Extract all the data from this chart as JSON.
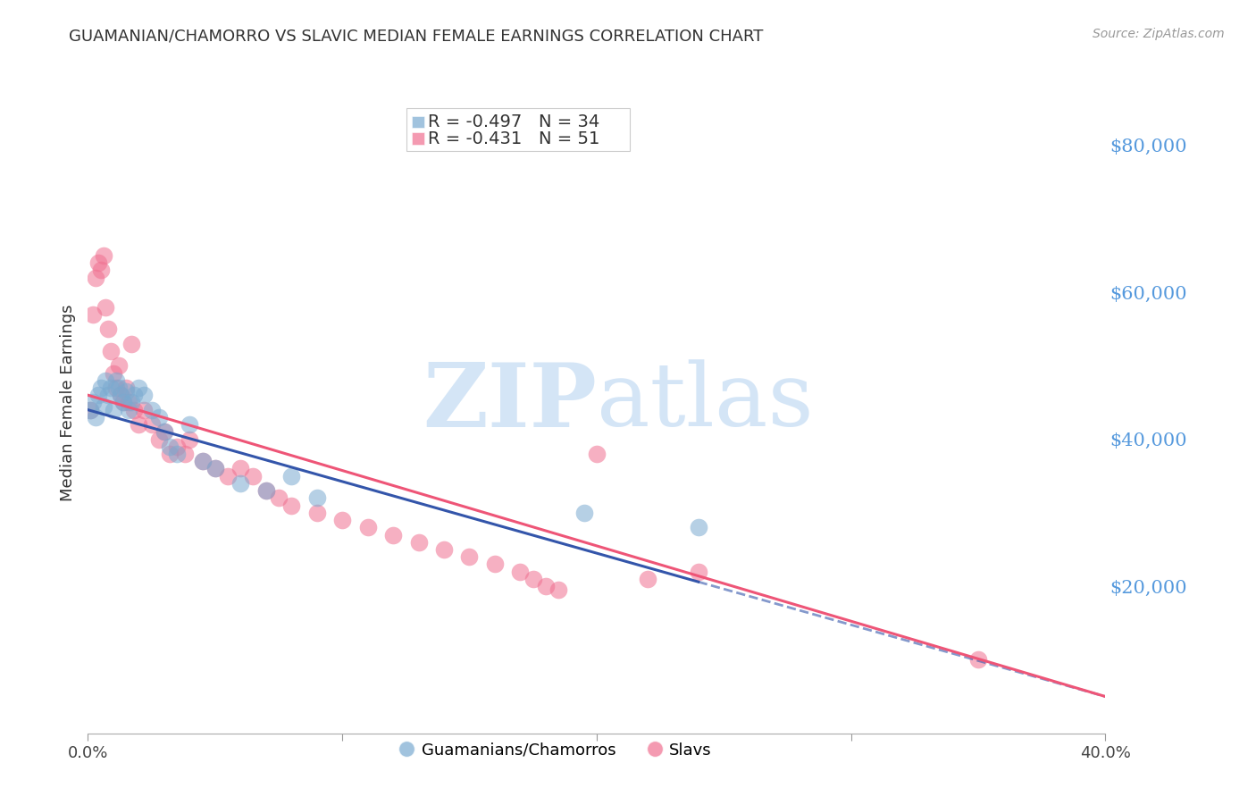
{
  "title": "GUAMANIAN/CHAMORRO VS SLAVIC MEDIAN FEMALE EARNINGS CORRELATION CHART",
  "source": "Source: ZipAtlas.com",
  "ylabel": "Median Female Earnings",
  "right_ytick_labels": [
    "$20,000",
    "$40,000",
    "$60,000",
    "$80,000"
  ],
  "right_ytick_values": [
    20000,
    40000,
    60000,
    80000
  ],
  "ylim": [
    0,
    90000
  ],
  "xlim": [
    0.0,
    0.4
  ],
  "legend_label_guam": "Guamanians/Chamorros",
  "legend_label_slav": "Slavs",
  "bg_color": "#FFFFFF",
  "watermark_zip": "ZIP",
  "watermark_atlas": "atlas",
  "watermark_color": "#AACCEE",
  "grid_color": "#CCCCCC",
  "blue_color": "#7AAAD0",
  "pink_color": "#F07090",
  "blue_line_color": "#3355AA",
  "pink_line_color": "#EE5577",
  "guam_x": [
    0.001,
    0.002,
    0.003,
    0.004,
    0.005,
    0.006,
    0.007,
    0.008,
    0.009,
    0.01,
    0.011,
    0.012,
    0.013,
    0.014,
    0.015,
    0.016,
    0.017,
    0.018,
    0.02,
    0.022,
    0.025,
    0.028,
    0.03,
    0.032,
    0.035,
    0.04,
    0.045,
    0.05,
    0.06,
    0.07,
    0.08,
    0.09,
    0.195,
    0.24
  ],
  "guam_y": [
    44000,
    45000,
    43000,
    46000,
    47000,
    44500,
    48000,
    46000,
    47000,
    44000,
    48000,
    47000,
    46000,
    45000,
    46500,
    44000,
    45000,
    46000,
    47000,
    46000,
    44000,
    43000,
    41000,
    39000,
    38000,
    42000,
    37000,
    36000,
    34000,
    33000,
    35000,
    32000,
    30000,
    28000
  ],
  "slav_x": [
    0.001,
    0.002,
    0.003,
    0.004,
    0.005,
    0.006,
    0.007,
    0.008,
    0.009,
    0.01,
    0.011,
    0.012,
    0.013,
    0.014,
    0.015,
    0.016,
    0.017,
    0.018,
    0.02,
    0.022,
    0.025,
    0.028,
    0.03,
    0.032,
    0.035,
    0.038,
    0.04,
    0.045,
    0.05,
    0.055,
    0.06,
    0.065,
    0.07,
    0.075,
    0.08,
    0.09,
    0.1,
    0.11,
    0.12,
    0.13,
    0.14,
    0.15,
    0.16,
    0.17,
    0.175,
    0.18,
    0.185,
    0.2,
    0.22,
    0.24,
    0.35
  ],
  "slav_y": [
    44000,
    57000,
    62000,
    64000,
    63000,
    65000,
    58000,
    55000,
    52000,
    49000,
    47000,
    50000,
    46000,
    45000,
    47000,
    45000,
    53000,
    44000,
    42000,
    44000,
    42000,
    40000,
    41000,
    38000,
    39000,
    38000,
    40000,
    37000,
    36000,
    35000,
    36000,
    35000,
    33000,
    32000,
    31000,
    30000,
    29000,
    28000,
    27000,
    26000,
    25000,
    24000,
    23000,
    22000,
    21000,
    20000,
    19500,
    38000,
    21000,
    22000,
    10000
  ]
}
